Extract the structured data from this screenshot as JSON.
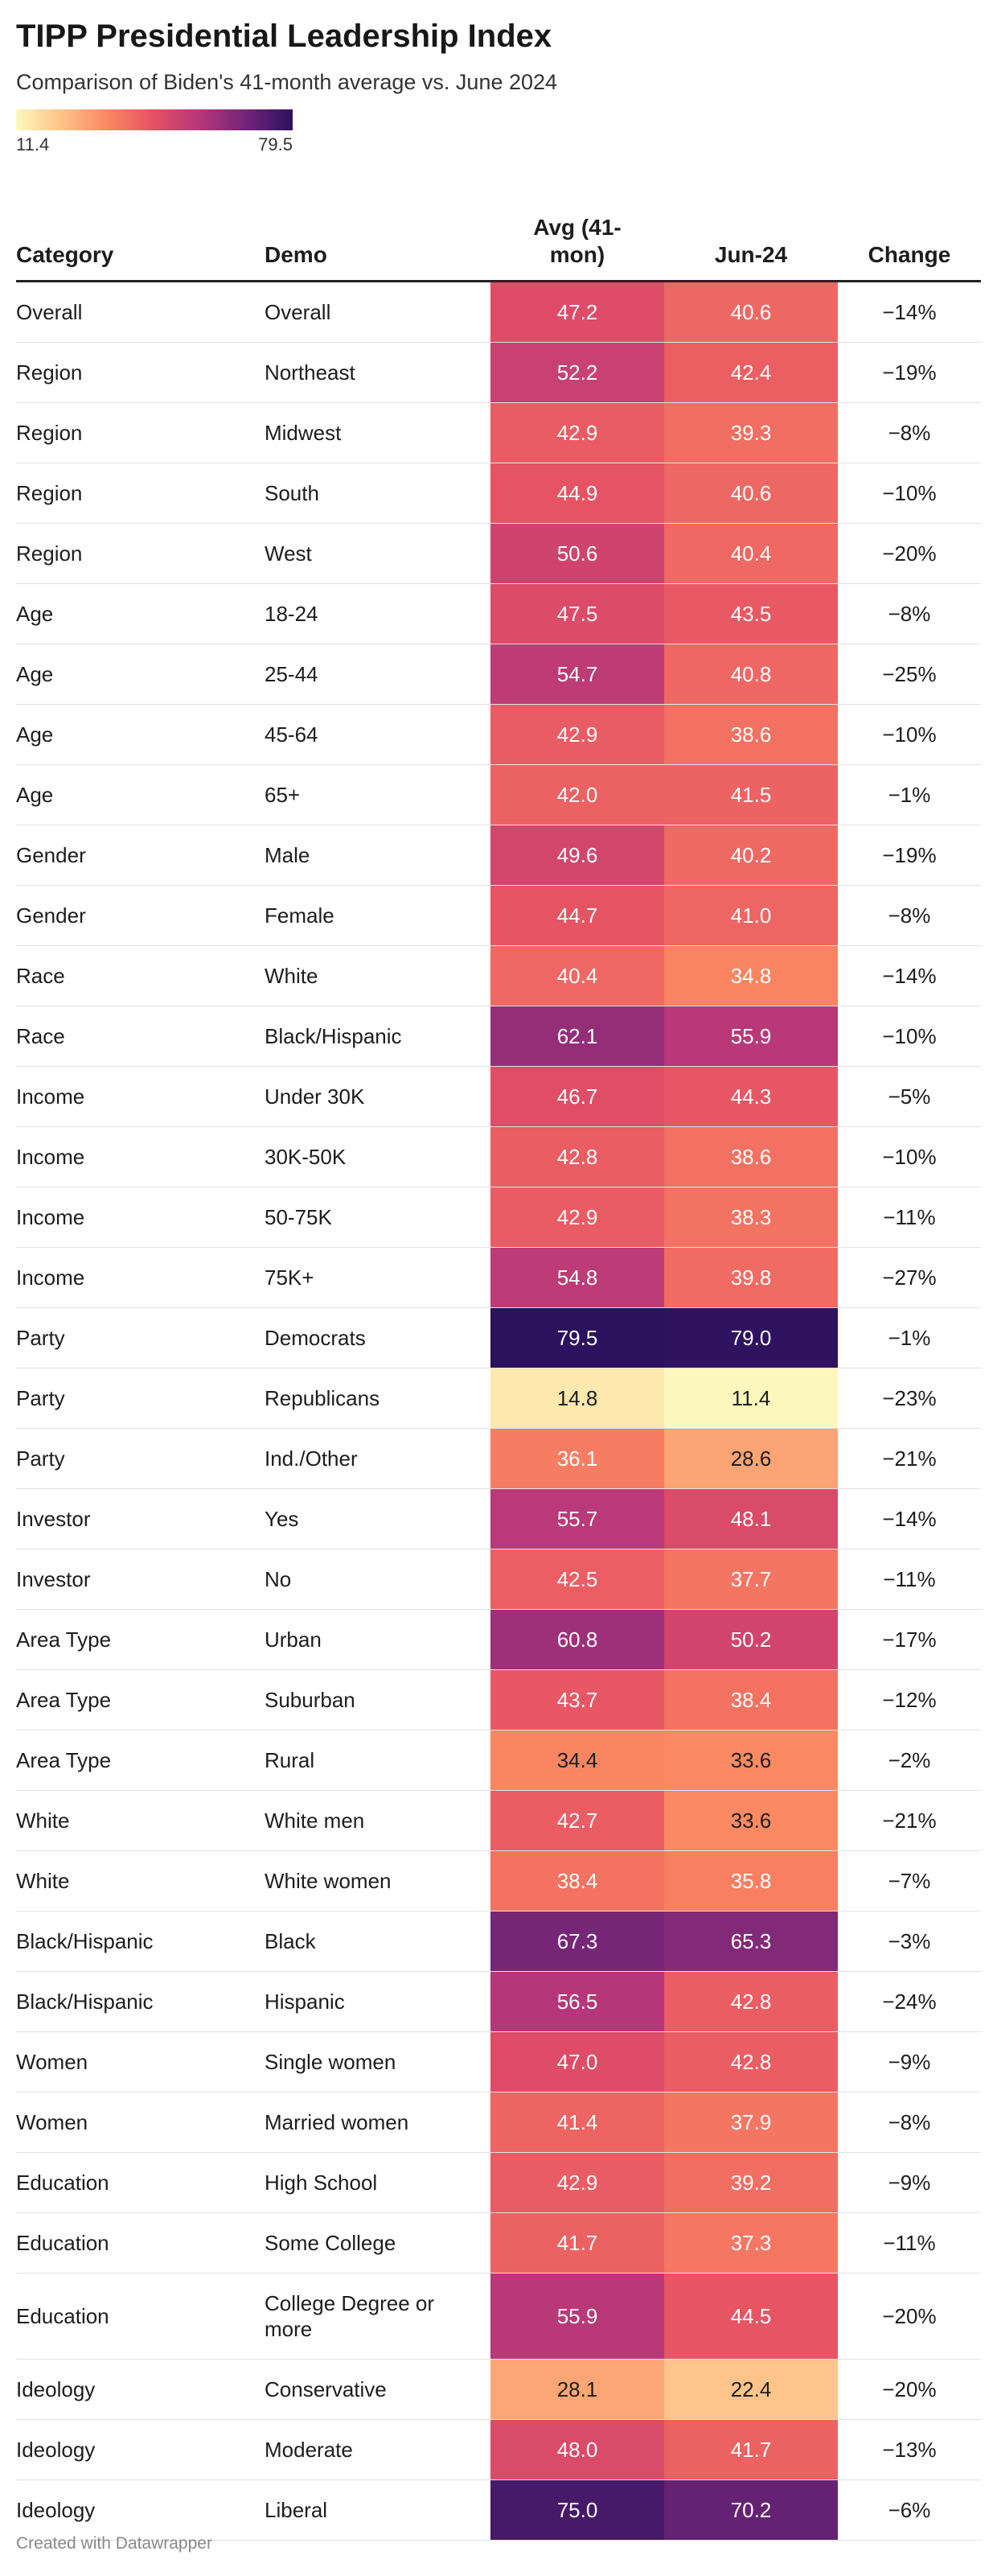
{
  "title": "TIPP Presidential Leadership Index",
  "subtitle": "Comparison of Biden's 41-month average vs. June 2024",
  "legend": {
    "min_label": "11.4",
    "max_label": "79.5"
  },
  "headers": {
    "category": "Category",
    "demo": "Demo",
    "avg": "Avg (41-\nmon)",
    "jun": "Jun-24",
    "change": "Change"
  },
  "footer": "Created with Datawrapper",
  "chart_data": {
    "type": "table",
    "title": "TIPP Presidential Leadership Index",
    "subtitle": "Comparison of Biden's 41-month average vs. June 2024",
    "color_scale": {
      "min": 11.4,
      "max": 79.5,
      "colors": [
        "#fcf8bd",
        "#fec287",
        "#fb8761",
        "#e55064",
        "#b5367a",
        "#712477",
        "#2c115f"
      ]
    },
    "columns": [
      "Category",
      "Demo",
      "Avg (41-mon)",
      "Jun-24",
      "Change"
    ],
    "rows": [
      {
        "category": "Overall",
        "demo": "Overall",
        "avg": "47.2",
        "jun": "40.6",
        "change": "−14%"
      },
      {
        "category": "Region",
        "demo": "Northeast",
        "avg": "52.2",
        "jun": "42.4",
        "change": "−19%"
      },
      {
        "category": "Region",
        "demo": "Midwest",
        "avg": "42.9",
        "jun": "39.3",
        "change": "−8%"
      },
      {
        "category": "Region",
        "demo": "South",
        "avg": "44.9",
        "jun": "40.6",
        "change": "−10%"
      },
      {
        "category": "Region",
        "demo": "West",
        "avg": "50.6",
        "jun": "40.4",
        "change": "−20%"
      },
      {
        "category": "Age",
        "demo": "18-24",
        "avg": "47.5",
        "jun": "43.5",
        "change": "−8%"
      },
      {
        "category": "Age",
        "demo": "25-44",
        "avg": "54.7",
        "jun": "40.8",
        "change": "−25%"
      },
      {
        "category": "Age",
        "demo": "45-64",
        "avg": "42.9",
        "jun": "38.6",
        "change": "−10%"
      },
      {
        "category": "Age",
        "demo": "65+",
        "avg": "42.0",
        "jun": "41.5",
        "change": "−1%"
      },
      {
        "category": "Gender",
        "demo": "Male",
        "avg": "49.6",
        "jun": "40.2",
        "change": "−19%"
      },
      {
        "category": "Gender",
        "demo": "Female",
        "avg": "44.7",
        "jun": "41.0",
        "change": "−8%"
      },
      {
        "category": "Race",
        "demo": "White",
        "avg": "40.4",
        "jun": "34.8",
        "change": "−14%"
      },
      {
        "category": "Race",
        "demo": "Black/Hispanic",
        "avg": "62.1",
        "jun": "55.9",
        "change": "−10%"
      },
      {
        "category": "Income",
        "demo": "Under 30K",
        "avg": "46.7",
        "jun": "44.3",
        "change": "−5%"
      },
      {
        "category": "Income",
        "demo": "30K-50K",
        "avg": "42.8",
        "jun": "38.6",
        "change": "−10%"
      },
      {
        "category": "Income",
        "demo": "50-75K",
        "avg": "42.9",
        "jun": "38.3",
        "change": "−11%"
      },
      {
        "category": "Income",
        "demo": "75K+",
        "avg": "54.8",
        "jun": "39.8",
        "change": "−27%"
      },
      {
        "category": "Party",
        "demo": "Democrats",
        "avg": "79.5",
        "jun": "79.0",
        "change": "−1%"
      },
      {
        "category": "Party",
        "demo": "Republicans",
        "avg": "14.8",
        "jun": "11.4",
        "change": "−23%"
      },
      {
        "category": "Party",
        "demo": "Ind./Other",
        "avg": "36.1",
        "jun": "28.6",
        "change": "−21%"
      },
      {
        "category": "Investor",
        "demo": "Yes",
        "avg": "55.7",
        "jun": "48.1",
        "change": "−14%"
      },
      {
        "category": "Investor",
        "demo": "No",
        "avg": "42.5",
        "jun": "37.7",
        "change": "−11%"
      },
      {
        "category": "Area Type",
        "demo": "Urban",
        "avg": "60.8",
        "jun": "50.2",
        "change": "−17%"
      },
      {
        "category": "Area Type",
        "demo": "Suburban",
        "avg": "43.7",
        "jun": "38.4",
        "change": "−12%"
      },
      {
        "category": "Area Type",
        "demo": "Rural",
        "avg": "34.4",
        "jun": "33.6",
        "change": "−2%"
      },
      {
        "category": "White",
        "demo": "White men",
        "avg": "42.7",
        "jun": "33.6",
        "change": "−21%"
      },
      {
        "category": "White",
        "demo": "White women",
        "avg": "38.4",
        "jun": "35.8",
        "change": "−7%"
      },
      {
        "category": "Black/Hispanic",
        "demo": "Black",
        "avg": "67.3",
        "jun": "65.3",
        "change": "−3%"
      },
      {
        "category": "Black/Hispanic",
        "demo": "Hispanic",
        "avg": "56.5",
        "jun": "42.8",
        "change": "−24%"
      },
      {
        "category": "Women",
        "demo": "Single women",
        "avg": "47.0",
        "jun": "42.8",
        "change": "−9%"
      },
      {
        "category": "Women",
        "demo": "Married women",
        "avg": "41.4",
        "jun": "37.9",
        "change": "−8%"
      },
      {
        "category": "Education",
        "demo": "High School",
        "avg": "42.9",
        "jun": "39.2",
        "change": "−9%"
      },
      {
        "category": "Education",
        "demo": "Some College",
        "avg": "41.7",
        "jun": "37.3",
        "change": "−11%"
      },
      {
        "category": "Education",
        "demo": "College Degree or more",
        "avg": "55.9",
        "jun": "44.5",
        "change": "−20%"
      },
      {
        "category": "Ideology",
        "demo": "Conservative",
        "avg": "28.1",
        "jun": "22.4",
        "change": "−20%"
      },
      {
        "category": "Ideology",
        "demo": "Moderate",
        "avg": "48.0",
        "jun": "41.7",
        "change": "−13%"
      },
      {
        "category": "Ideology",
        "demo": "Liberal",
        "avg": "75.0",
        "jun": "70.2",
        "change": "−6%"
      }
    ]
  }
}
